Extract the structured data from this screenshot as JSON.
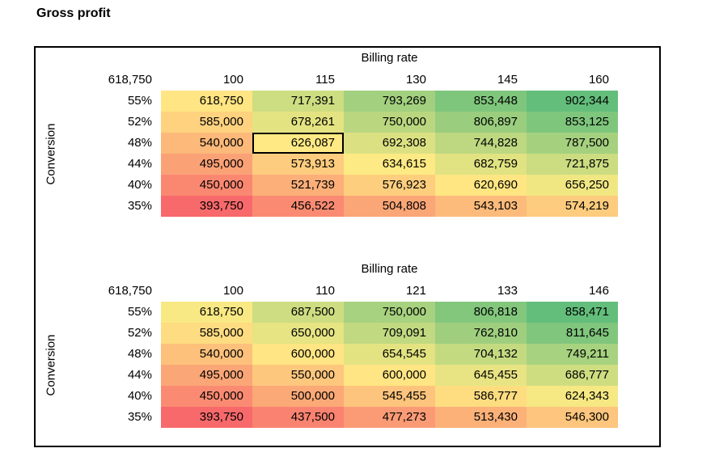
{
  "title": "Gross profit",
  "chart_data": [
    {
      "type": "heatmap",
      "title": "Billing rate",
      "x_axis_label": "Billing rate",
      "y_axis_label": "Conversion",
      "corner_value": 618750,
      "x_categories": [
        100,
        115,
        130,
        145,
        160
      ],
      "y_categories": [
        "55%",
        "52%",
        "48%",
        "44%",
        "40%",
        "35%"
      ],
      "values": [
        [
          618750,
          717391,
          793269,
          853448,
          902344
        ],
        [
          585000,
          678261,
          750000,
          806897,
          853125
        ],
        [
          540000,
          626087,
          692308,
          744828,
          787500
        ],
        [
          495000,
          573913,
          634615,
          682759,
          721875
        ],
        [
          450000,
          521739,
          576923,
          620690,
          656250
        ],
        [
          393750,
          456522,
          504808,
          543103,
          574219
        ]
      ],
      "highlighted_cell": {
        "row": 2,
        "col": 1,
        "row_label": "48%",
        "col_label": 115,
        "value": 626087
      },
      "color_scale": {
        "min_color": "#F8696B",
        "mid_color": "#FFEB84",
        "max_color": "#63BE7B",
        "mid_at": "median"
      }
    },
    {
      "type": "heatmap",
      "title": "Billing rate",
      "x_axis_label": "Billing rate",
      "y_axis_label": "Conversion",
      "corner_value": 618750,
      "x_categories": [
        100,
        110,
        121,
        133,
        146
      ],
      "y_categories": [
        "55%",
        "52%",
        "48%",
        "44%",
        "40%",
        "35%"
      ],
      "values": [
        [
          618750,
          687500,
          750000,
          806818,
          858471
        ],
        [
          585000,
          650000,
          709091,
          762810,
          811645
        ],
        [
          540000,
          600000,
          654545,
          704132,
          749211
        ],
        [
          495000,
          550000,
          600000,
          645455,
          686777
        ],
        [
          450000,
          500000,
          545455,
          586777,
          624343
        ],
        [
          393750,
          437500,
          477273,
          513430,
          546300
        ]
      ],
      "highlighted_cell": null,
      "color_scale": {
        "min_color": "#F8696B",
        "mid_color": "#FFEB84",
        "max_color": "#63BE7B",
        "mid_at": "median"
      }
    }
  ]
}
